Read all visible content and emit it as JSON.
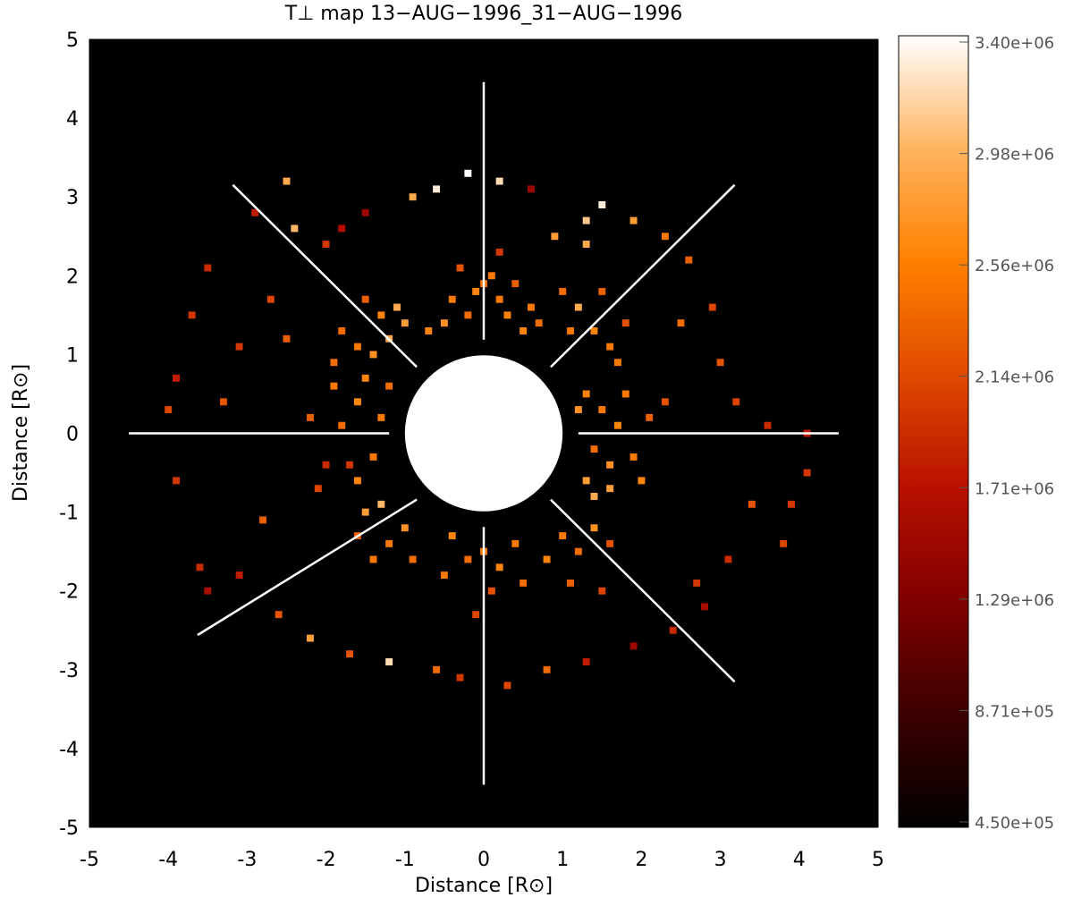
{
  "chart_data": {
    "type": "heatmap",
    "title": "T⊥ map 13−AUG−1996_31−AUG−1996",
    "x_label": "Distance [R⊙]",
    "y_label": "Distance [R⊙]",
    "xlim": [
      -5,
      5
    ],
    "ylim": [
      -5,
      5
    ],
    "xticks": [
      -5,
      -4,
      -3,
      -2,
      -1,
      0,
      1,
      2,
      3,
      4,
      5
    ],
    "yticks": [
      -5,
      -4,
      -3,
      -2,
      -1,
      0,
      1,
      2,
      3,
      4,
      5
    ],
    "cell_size": 0.1,
    "background": "#000000",
    "colorscale": [
      "#000000",
      "#3c0000",
      "#800000",
      "#b81000",
      "#e04a00",
      "#ff8000",
      "#ffb460",
      "#ffffff"
    ],
    "clim": [
      450000,
      3400000
    ],
    "cticks": [
      {
        "value": 3400000,
        "label": "3.40e+06"
      },
      {
        "value": 2978571,
        "label": "2.98e+06"
      },
      {
        "value": 2557143,
        "label": "2.56e+06"
      },
      {
        "value": 2135714,
        "label": "2.14e+06"
      },
      {
        "value": 1714286,
        "label": "1.71e+06"
      },
      {
        "value": 1292857,
        "label": "1.29e+06"
      },
      {
        "value": 871429,
        "label": "8.71e+05"
      },
      {
        "value": 450000,
        "label": "4.50e+05"
      }
    ],
    "cells": [
      {
        "x": 0,
        "y": 1.9,
        "value": 2400000.0
      },
      {
        "x": 0.1,
        "y": 2.0,
        "value": 2500000.0
      },
      {
        "x": -0.1,
        "y": 1.8,
        "value": 2600000.0
      },
      {
        "x": 0.2,
        "y": 1.7,
        "value": 2500000.0
      },
      {
        "x": -0.2,
        "y": 1.5,
        "value": 2400000.0
      },
      {
        "x": 0.3,
        "y": 1.5,
        "value": 2600000.0
      },
      {
        "x": 0.4,
        "y": 1.9,
        "value": 2300000.0
      },
      {
        "x": -0.4,
        "y": 1.7,
        "value": 2500000.0
      },
      {
        "x": -0.5,
        "y": 1.4,
        "value": 2700000.0
      },
      {
        "x": 0.6,
        "y": 1.6,
        "value": 2500000.0
      },
      {
        "x": 0.7,
        "y": 1.4,
        "value": 2400000.0
      },
      {
        "x": -0.7,
        "y": 1.3,
        "value": 2600000.0
      },
      {
        "x": 0.5,
        "y": 1.3,
        "value": 2600000.0
      },
      {
        "x": -0.3,
        "y": 2.1,
        "value": 2200000.0
      },
      {
        "x": 0.2,
        "y": 2.3,
        "value": 2000000.0
      },
      {
        "x": 1.0,
        "y": 1.8,
        "value": 2400000.0
      },
      {
        "x": 1.2,
        "y": 1.6,
        "value": 2900000.0
      },
      {
        "x": 1.4,
        "y": 1.3,
        "value": 2600000.0
      },
      {
        "x": 1.6,
        "y": 1.1,
        "value": 2500000.0
      },
      {
        "x": 1.1,
        "y": 1.3,
        "value": 2500000.0
      },
      {
        "x": 1.3,
        "y": 2.4,
        "value": 2900000.0
      },
      {
        "x": 1.5,
        "y": 1.8,
        "value": 2300000.0
      },
      {
        "x": 1.8,
        "y": 1.4,
        "value": 2200000.0
      },
      {
        "x": 1.7,
        "y": 0.9,
        "value": 2500000.0
      },
      {
        "x": 1.3,
        "y": 0.5,
        "value": 2600000.0
      },
      {
        "x": 1.5,
        "y": 0.3,
        "value": 2500000.0
      },
      {
        "x": 1.7,
        "y": 0.1,
        "value": 2600000.0
      },
      {
        "x": 1.4,
        "y": -0.2,
        "value": 2400000.0
      },
      {
        "x": 1.6,
        "y": -0.4,
        "value": 2700000.0
      },
      {
        "x": 1.9,
        "y": -0.3,
        "value": 2500000.0
      },
      {
        "x": 1.3,
        "y": -0.6,
        "value": 2800000.0
      },
      {
        "x": 2.1,
        "y": 0.2,
        "value": 2300000.0
      },
      {
        "x": 1.8,
        "y": 0.5,
        "value": 2500000.0
      },
      {
        "x": 2.0,
        "y": -0.6,
        "value": 2600000.0
      },
      {
        "x": 2.3,
        "y": 0.4,
        "value": 2200000.0
      },
      {
        "x": 1.2,
        "y": 0.3,
        "value": 2700000.0
      },
      {
        "x": 1.4,
        "y": -0.8,
        "value": 2900000.0
      },
      {
        "x": 1.6,
        "y": -0.7,
        "value": 2800000.0
      },
      {
        "x": 1.0,
        "y": -1.3,
        "value": 2500000.0
      },
      {
        "x": 1.2,
        "y": -1.5,
        "value": 2400000.0
      },
      {
        "x": 0.8,
        "y": -1.6,
        "value": 2600000.0
      },
      {
        "x": 1.4,
        "y": -1.2,
        "value": 2700000.0
      },
      {
        "x": 1.1,
        "y": -1.9,
        "value": 2300000.0
      },
      {
        "x": 1.6,
        "y": -1.4,
        "value": 2200000.0
      },
      {
        "x": 1.5,
        "y": -2.0,
        "value": 2100000.0
      },
      {
        "x": 0,
        "y": -1.5,
        "value": 2500000.0
      },
      {
        "x": 0.2,
        "y": -1.7,
        "value": 2600000.0
      },
      {
        "x": -0.2,
        "y": -1.6,
        "value": 2400000.0
      },
      {
        "x": 0.4,
        "y": -1.4,
        "value": 2500000.0
      },
      {
        "x": -0.4,
        "y": -1.3,
        "value": 2600000.0
      },
      {
        "x": 0.5,
        "y": -1.9,
        "value": 2400000.0
      },
      {
        "x": -0.5,
        "y": -1.8,
        "value": 2500000.0
      },
      {
        "x": 0.1,
        "y": -2.0,
        "value": 2200000.0
      },
      {
        "x": -0.1,
        "y": -2.3,
        "value": 2100000.0
      },
      {
        "x": -1.0,
        "y": -1.2,
        "value": 2700000.0
      },
      {
        "x": -1.3,
        "y": -0.9,
        "value": 3000000.0
      },
      {
        "x": -1.5,
        "y": -1.0,
        "value": 2800000.0
      },
      {
        "x": -1.2,
        "y": -1.4,
        "value": 2500000.0
      },
      {
        "x": -0.9,
        "y": -1.6,
        "value": 2400000.0
      },
      {
        "x": -1.6,
        "y": -1.3,
        "value": 2300000.0
      },
      {
        "x": -1.4,
        "y": -1.6,
        "value": 2500000.0
      },
      {
        "x": -1.3,
        "y": 0.2,
        "value": 2500000.0
      },
      {
        "x": -1.6,
        "y": 0.4,
        "value": 2600000.0
      },
      {
        "x": -1.8,
        "y": 0.1,
        "value": 2400000.0
      },
      {
        "x": -1.4,
        "y": -0.3,
        "value": 2500000.0
      },
      {
        "x": -1.7,
        "y": -0.4,
        "value": 2000000.0
      },
      {
        "x": -2.0,
        "y": -0.4,
        "value": 1900000.0
      },
      {
        "x": -1.9,
        "y": 0.6,
        "value": 2500000.0
      },
      {
        "x": -1.5,
        "y": 0.7,
        "value": 2600000.0
      },
      {
        "x": -2.2,
        "y": 0.2,
        "value": 2300000.0
      },
      {
        "x": -1.2,
        "y": 0.6,
        "value": 2400000.0
      },
      {
        "x": -1.6,
        "y": -0.6,
        "value": 2600000.0
      },
      {
        "x": -2.1,
        "y": -0.7,
        "value": 2100000.0
      },
      {
        "x": -1.2,
        "y": 1.2,
        "value": 2900000.0
      },
      {
        "x": -1.4,
        "y": 1.0,
        "value": 2700000.0
      },
      {
        "x": -1.6,
        "y": 1.1,
        "value": 2500000.0
      },
      {
        "x": -1.0,
        "y": 1.4,
        "value": 2800000.0
      },
      {
        "x": -1.3,
        "y": 1.5,
        "value": 2600000.0
      },
      {
        "x": -1.8,
        "y": 1.3,
        "value": 2400000.0
      },
      {
        "x": -1.5,
        "y": 1.7,
        "value": 2300000.0
      },
      {
        "x": -1.1,
        "y": 1.6,
        "value": 2900000.0
      },
      {
        "x": -1.9,
        "y": 0.9,
        "value": 2400000.0
      },
      {
        "x": -2.5,
        "y": 3.2,
        "value": 2900000.0
      },
      {
        "x": -2.9,
        "y": 2.8,
        "value": 1800000.0
      },
      {
        "x": -3.5,
        "y": 2.1,
        "value": 1900000.0
      },
      {
        "x": -3.7,
        "y": 1.5,
        "value": 2000000.0
      },
      {
        "x": -3.9,
        "y": 0.7,
        "value": 1800000.0
      },
      {
        "x": -4.0,
        "y": 0.3,
        "value": 2100000.0
      },
      {
        "x": -3.9,
        "y": -0.6,
        "value": 2000000.0
      },
      {
        "x": -3.6,
        "y": -1.7,
        "value": 1900000.0
      },
      {
        "x": -3.5,
        "y": -2.0,
        "value": 1600000.0
      },
      {
        "x": -3.1,
        "y": -1.8,
        "value": 1800000.0
      },
      {
        "x": -2.6,
        "y": -2.3,
        "value": 2200000.0
      },
      {
        "x": -2.2,
        "y": -2.6,
        "value": 2800000.0
      },
      {
        "x": -1.7,
        "y": -2.8,
        "value": 2200000.0
      },
      {
        "x": -1.2,
        "y": -2.9,
        "value": 3200000.0
      },
      {
        "x": -0.6,
        "y": -3.0,
        "value": 2400000.0
      },
      {
        "x": -0.3,
        "y": -3.1,
        "value": 2000000.0
      },
      {
        "x": 0.3,
        "y": -3.2,
        "value": 2100000.0
      },
      {
        "x": 0.8,
        "y": -3.0,
        "value": 2400000.0
      },
      {
        "x": 1.3,
        "y": -2.9,
        "value": 1800000.0
      },
      {
        "x": 1.9,
        "y": -2.7,
        "value": 1500000.0
      },
      {
        "x": 2.4,
        "y": -2.5,
        "value": 1900000.0
      },
      {
        "x": 2.8,
        "y": -2.2,
        "value": 1600000.0
      },
      {
        "x": 3.1,
        "y": -1.6,
        "value": 1900000.0
      },
      {
        "x": 3.8,
        "y": -1.4,
        "value": 2100000.0
      },
      {
        "x": 3.9,
        "y": -0.9,
        "value": 2000000.0
      },
      {
        "x": 4.1,
        "y": -0.5,
        "value": 2000000.0
      },
      {
        "x": 4.1,
        "y": 0.0,
        "value": 1800000.0
      },
      {
        "x": 3.6,
        "y": 0.1,
        "value": 1900000.0
      },
      {
        "x": 3.0,
        "y": 0.9,
        "value": 2200000.0
      },
      {
        "x": 2.9,
        "y": 1.6,
        "value": 2100000.0
      },
      {
        "x": 2.6,
        "y": 2.2,
        "value": 2300000.0
      },
      {
        "x": 2.3,
        "y": 2.5,
        "value": 2500000.0
      },
      {
        "x": 1.9,
        "y": 2.7,
        "value": 2800000.0
      },
      {
        "x": 1.5,
        "y": 2.9,
        "value": 3300000.0
      },
      {
        "x": 1.3,
        "y": 2.7,
        "value": 3100000.0
      },
      {
        "x": 0.6,
        "y": 3.1,
        "value": 1500000.0
      },
      {
        "x": 0.2,
        "y": 3.2,
        "value": 3200000.0
      },
      {
        "x": -0.2,
        "y": 3.3,
        "value": 3400000.0
      },
      {
        "x": -0.6,
        "y": 3.1,
        "value": 3300000.0
      },
      {
        "x": -0.9,
        "y": 3.0,
        "value": 2900000.0
      },
      {
        "x": -1.5,
        "y": 2.8,
        "value": 1500000.0
      },
      {
        "x": -1.8,
        "y": 2.6,
        "value": 1700000.0
      },
      {
        "x": -2.0,
        "y": 2.4,
        "value": 2000000.0
      },
      {
        "x": -2.4,
        "y": 2.6,
        "value": 3000000.0
      },
      {
        "x": -2.7,
        "y": 1.7,
        "value": 2100000.0
      },
      {
        "x": -3.1,
        "y": 1.1,
        "value": 2000000.0
      },
      {
        "x": 2.7,
        "y": -1.9,
        "value": 2000000.0
      },
      {
        "x": 3.4,
        "y": -0.9,
        "value": 2200000.0
      },
      {
        "x": -2.8,
        "y": -1.1,
        "value": 2300000.0
      },
      {
        "x": 3.2,
        "y": 0.4,
        "value": 2100000.0
      },
      {
        "x": 2.5,
        "y": 1.4,
        "value": 2400000.0
      },
      {
        "x": -3.3,
        "y": 0.4,
        "value": 2200000.0
      },
      {
        "x": 0.9,
        "y": 2.5,
        "value": 2800000.0
      },
      {
        "x": -2.5,
        "y": 1.2,
        "value": 2300000.0
      }
    ]
  }
}
